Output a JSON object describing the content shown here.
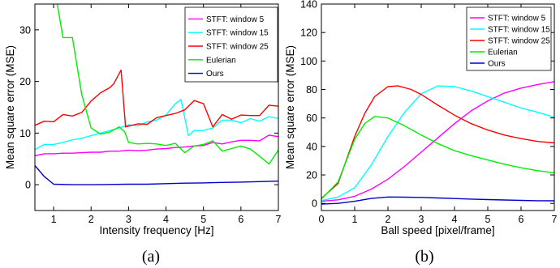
{
  "chart_data": [
    {
      "type": "line",
      "caption": "(a)",
      "xlabel": "Intensity frequency [Hz]",
      "ylabel": "Mean square error (MSE)",
      "xlim": [
        0.5,
        7
      ],
      "ylim": [
        -5,
        35
      ],
      "xticks": [
        1,
        2,
        3,
        4,
        5,
        6,
        7
      ],
      "yticks": [
        0,
        10,
        20,
        30
      ],
      "grid": false,
      "legend_position": "top-right",
      "series": [
        {
          "name": "STFT: window 5",
          "color": "#ff00ff",
          "points": [
            [
              0.5,
              5.6
            ],
            [
              0.75,
              6.0
            ],
            [
              1.0,
              6.0
            ],
            [
              1.25,
              6.1
            ],
            [
              1.5,
              6.1
            ],
            [
              1.75,
              6.2
            ],
            [
              2.0,
              6.3
            ],
            [
              2.25,
              6.3
            ],
            [
              2.5,
              6.5
            ],
            [
              2.75,
              6.5
            ],
            [
              3.0,
              6.7
            ],
            [
              3.25,
              6.6
            ],
            [
              3.5,
              6.7
            ],
            [
              3.75,
              6.9
            ],
            [
              4.0,
              7.0
            ],
            [
              4.25,
              7.2
            ],
            [
              4.5,
              7.3
            ],
            [
              4.75,
              7.5
            ],
            [
              5.0,
              7.6
            ],
            [
              5.25,
              8.2
            ],
            [
              5.5,
              7.9
            ],
            [
              5.75,
              8.3
            ],
            [
              6.0,
              8.6
            ],
            [
              6.25,
              8.6
            ],
            [
              6.5,
              8.5
            ],
            [
              6.75,
              9.6
            ],
            [
              7.0,
              9.3
            ]
          ]
        },
        {
          "name": "STFT: window 15",
          "color": "#00ffff",
          "points": [
            [
              0.5,
              6.8
            ],
            [
              0.75,
              7.8
            ],
            [
              1.0,
              7.8
            ],
            [
              1.25,
              8.2
            ],
            [
              1.5,
              8.7
            ],
            [
              1.75,
              9.0
            ],
            [
              2.0,
              9.5
            ],
            [
              2.25,
              10.0
            ],
            [
              2.5,
              10.5
            ],
            [
              2.75,
              11.0
            ],
            [
              3.0,
              11.6
            ],
            [
              3.25,
              11.4
            ],
            [
              3.5,
              12.2
            ],
            [
              3.75,
              12.5
            ],
            [
              4.0,
              13.5
            ],
            [
              4.25,
              15.7
            ],
            [
              4.4,
              16.5
            ],
            [
              4.6,
              9.5
            ],
            [
              4.75,
              10.5
            ],
            [
              5.0,
              10.5
            ],
            [
              5.25,
              11.0
            ],
            [
              5.5,
              12.5
            ],
            [
              5.75,
              12.5
            ],
            [
              6.0,
              12.0
            ],
            [
              6.25,
              12.8
            ],
            [
              6.5,
              12.3
            ],
            [
              6.75,
              13.2
            ],
            [
              7.0,
              12.8
            ]
          ]
        },
        {
          "name": "STFT: window 25",
          "color": "#ff0000",
          "points": [
            [
              0.5,
              11.5
            ],
            [
              0.75,
              12.3
            ],
            [
              1.0,
              12.2
            ],
            [
              1.25,
              13.6
            ],
            [
              1.5,
              13.3
            ],
            [
              1.75,
              14.0
            ],
            [
              2.0,
              16.2
            ],
            [
              2.25,
              17.8
            ],
            [
              2.5,
              18.8
            ],
            [
              2.6,
              19.5
            ],
            [
              2.8,
              22.2
            ],
            [
              2.92,
              11.2
            ],
            [
              3.25,
              11.8
            ],
            [
              3.5,
              11.7
            ],
            [
              3.75,
              13.0
            ],
            [
              4.0,
              13.4
            ],
            [
              4.25,
              13.8
            ],
            [
              4.5,
              14.5
            ],
            [
              4.75,
              16.3
            ],
            [
              5.0,
              15.7
            ],
            [
              5.25,
              11.2
            ],
            [
              5.5,
              13.6
            ],
            [
              5.75,
              12.7
            ],
            [
              6.0,
              13.5
            ],
            [
              6.25,
              13.4
            ],
            [
              6.5,
              13.4
            ],
            [
              6.75,
              15.4
            ],
            [
              7.0,
              15.2
            ]
          ]
        },
        {
          "name": "Eulerian",
          "color": "#00ee00",
          "points": [
            [
              1.05,
              37.0
            ],
            [
              1.25,
              28.5
            ],
            [
              1.5,
              28.5
            ],
            [
              1.75,
              17.5
            ],
            [
              2.0,
              11.0
            ],
            [
              2.25,
              9.8
            ],
            [
              2.5,
              10.2
            ],
            [
              2.75,
              11.2
            ],
            [
              2.9,
              10.2
            ],
            [
              3.0,
              8.2
            ],
            [
              3.25,
              7.9
            ],
            [
              3.5,
              8.0
            ],
            [
              3.75,
              7.9
            ],
            [
              4.0,
              7.6
            ],
            [
              4.25,
              8.0
            ],
            [
              4.5,
              6.2
            ],
            [
              4.75,
              7.5
            ],
            [
              5.0,
              7.8
            ],
            [
              5.25,
              8.5
            ],
            [
              5.5,
              6.5
            ],
            [
              5.75,
              7.0
            ],
            [
              6.0,
              7.5
            ],
            [
              6.25,
              6.9
            ],
            [
              6.5,
              5.5
            ],
            [
              6.75,
              4.0
            ],
            [
              7.0,
              6.7
            ]
          ]
        },
        {
          "name": "Ours",
          "color": "#0000cc",
          "points": [
            [
              0.5,
              3.7
            ],
            [
              0.75,
              1.6
            ],
            [
              1.0,
              0.1
            ],
            [
              1.5,
              0.0
            ],
            [
              2.0,
              0.0
            ],
            [
              2.5,
              0.05
            ],
            [
              3.0,
              0.1
            ],
            [
              3.5,
              0.1
            ],
            [
              4.0,
              0.2
            ],
            [
              4.5,
              0.3
            ],
            [
              5.0,
              0.35
            ],
            [
              5.5,
              0.45
            ],
            [
              6.0,
              0.5
            ],
            [
              6.5,
              0.6
            ],
            [
              7.0,
              0.7
            ]
          ]
        }
      ]
    },
    {
      "type": "line",
      "caption": "(b)",
      "xlabel": "Ball speed [pixel/frame]",
      "ylabel": "Mean square error (MSE)",
      "xlim": [
        0,
        7
      ],
      "ylim": [
        -5,
        140
      ],
      "xticks": [
        0,
        1,
        2,
        3,
        4,
        5,
        6,
        7
      ],
      "yticks": [
        0,
        20,
        40,
        60,
        80,
        100,
        120,
        140
      ],
      "grid": false,
      "legend_position": "top-right",
      "series": [
        {
          "name": "STFT: window 5",
          "color": "#ff00ff",
          "points": [
            [
              0,
              1.5
            ],
            [
              0.5,
              2.5
            ],
            [
              1.0,
              5.0
            ],
            [
              1.5,
              10.0
            ],
            [
              2.0,
              17.0
            ],
            [
              2.5,
              26.0
            ],
            [
              3.0,
              36.0
            ],
            [
              3.5,
              46.0
            ],
            [
              4.0,
              56.0
            ],
            [
              4.5,
              65.0
            ],
            [
              5.0,
              72.0
            ],
            [
              5.5,
              77.5
            ],
            [
              6.0,
              81.0
            ],
            [
              6.5,
              83.5
            ],
            [
              7.0,
              85.5
            ]
          ]
        },
        {
          "name": "STFT: window 15",
          "color": "#00ffff",
          "points": [
            [
              0,
              2.0
            ],
            [
              0.5,
              4.5
            ],
            [
              1.0,
              11.0
            ],
            [
              1.5,
              27.0
            ],
            [
              2.0,
              47.0
            ],
            [
              2.5,
              64.0
            ],
            [
              3.0,
              77.0
            ],
            [
              3.5,
              82.5
            ],
            [
              4.0,
              82.0
            ],
            [
              4.5,
              79.0
            ],
            [
              5.0,
              75.0
            ],
            [
              5.5,
              71.0
            ],
            [
              6.0,
              67.0
            ],
            [
              6.5,
              64.0
            ],
            [
              7.0,
              60.5
            ]
          ]
        },
        {
          "name": "STFT: window 25",
          "color": "#ff0000",
          "points": [
            [
              0,
              3.5
            ],
            [
              0.5,
              14.0
            ],
            [
              1.0,
              47.0
            ],
            [
              1.3,
              63.0
            ],
            [
              1.6,
              75.0
            ],
            [
              2.0,
              82.0
            ],
            [
              2.3,
              82.5
            ],
            [
              2.7,
              80.0
            ],
            [
              3.0,
              76.5
            ],
            [
              3.5,
              69.0
            ],
            [
              4.0,
              62.0
            ],
            [
              4.5,
              56.0
            ],
            [
              5.0,
              51.5
            ],
            [
              5.5,
              48.0
            ],
            [
              6.0,
              45.5
            ],
            [
              6.5,
              43.5
            ],
            [
              7.0,
              42.5
            ]
          ]
        },
        {
          "name": "Eulerian",
          "color": "#00ee00",
          "points": [
            [
              0,
              3.0
            ],
            [
              0.5,
              15.0
            ],
            [
              1.0,
              45.0
            ],
            [
              1.3,
              56.0
            ],
            [
              1.6,
              61.0
            ],
            [
              2.0,
              60.0
            ],
            [
              2.5,
              54.5
            ],
            [
              3.0,
              48.0
            ],
            [
              3.5,
              42.0
            ],
            [
              4.0,
              37.0
            ],
            [
              4.5,
              33.5
            ],
            [
              5.0,
              30.5
            ],
            [
              5.5,
              27.5
            ],
            [
              6.0,
              25.0
            ],
            [
              6.5,
              23.0
            ],
            [
              7.0,
              21.5
            ]
          ]
        },
        {
          "name": "Ours",
          "color": "#0000cc",
          "points": [
            [
              0,
              -0.5
            ],
            [
              0.5,
              0.0
            ],
            [
              1.0,
              1.5
            ],
            [
              1.5,
              3.5
            ],
            [
              2.0,
              4.5
            ],
            [
              2.5,
              4.4
            ],
            [
              3.0,
              4.2
            ],
            [
              3.5,
              3.8
            ],
            [
              4.0,
              3.4
            ],
            [
              4.5,
              3.0
            ],
            [
              5.0,
              2.7
            ],
            [
              5.5,
              2.4
            ],
            [
              6.0,
              2.1
            ],
            [
              6.5,
              1.9
            ],
            [
              7.0,
              1.8
            ]
          ]
        }
      ]
    }
  ]
}
